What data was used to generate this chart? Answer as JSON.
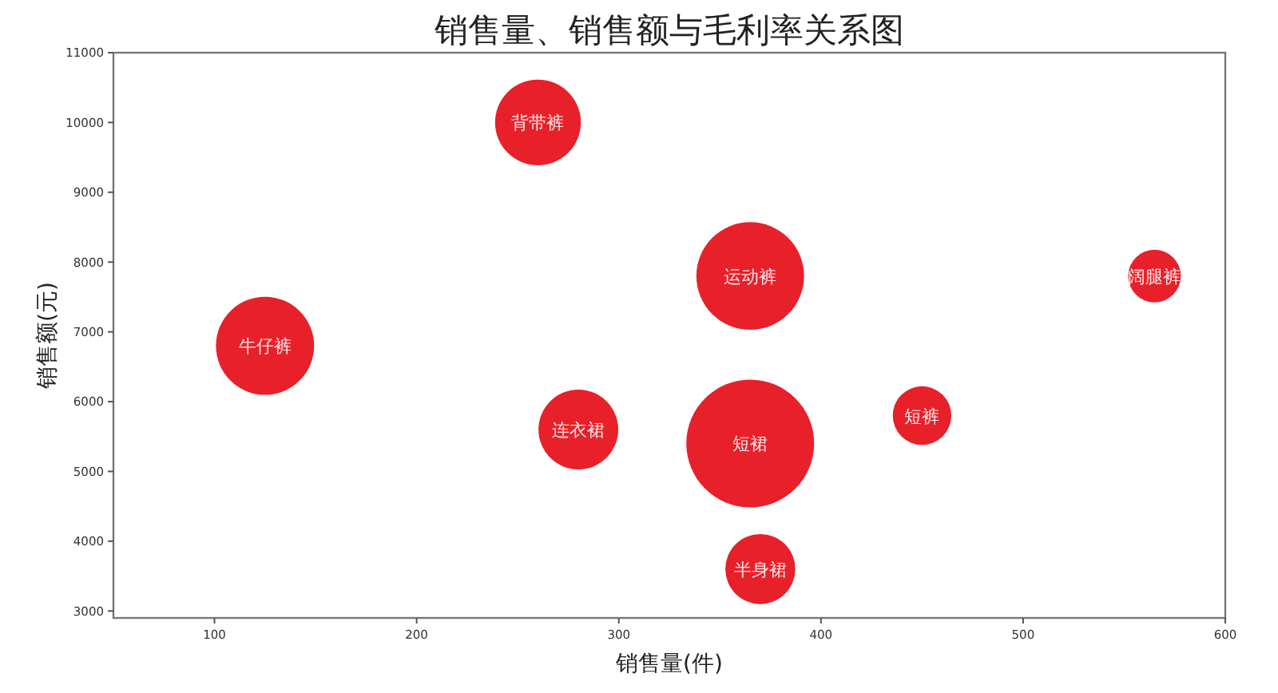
{
  "chart_data": {
    "type": "bubble",
    "title": "销售量、销售额与毛利率关系图",
    "xlabel": "销售量(件)",
    "ylabel": "销售额(元)",
    "x": [
      125,
      260,
      365,
      565,
      280,
      365,
      450,
      370
    ],
    "values": [
      6800,
      10000,
      7800,
      7800,
      5600,
      5400,
      5800,
      3600
    ],
    "sizes": [
      0.59,
      0.45,
      0.71,
      0.17,
      0.39,
      1,
      0.21,
      0.3
    ],
    "color": "#e8202a",
    "xlim": [
      50,
      600
    ],
    "ylim": [
      2900,
      11000
    ],
    "xticks": [
      100,
      200,
      300,
      400,
      500,
      600
    ],
    "yticks": [
      3000,
      4000,
      5000,
      6000,
      7000,
      8000,
      9000,
      10000,
      11000
    ],
    "annotations": [
      {
        "text": "牛仔裤",
        "x": 125,
        "y": 6800
      },
      {
        "text": "背带裤",
        "x": 260,
        "y": 10000
      },
      {
        "text": "运动裤",
        "x": 365,
        "y": 7800
      },
      {
        "text": "阔腿裤",
        "x": 565,
        "y": 7800
      },
      {
        "text": "连衣裙",
        "x": 280,
        "y": 5600
      },
      {
        "text": "短裙",
        "x": 365,
        "y": 5400
      },
      {
        "text": "短裤",
        "x": 450,
        "y": 5800
      },
      {
        "text": "半身裙",
        "x": 370,
        "y": 3600
      }
    ]
  }
}
